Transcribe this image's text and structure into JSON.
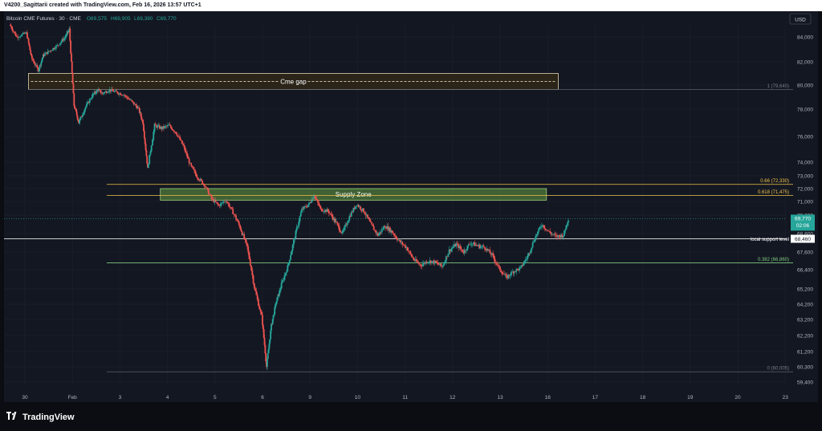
{
  "header": {
    "attribution": "V4200_Sagittarii created with TradingView.com, Feb 16, 2026 13:57 UTC+1"
  },
  "symbol_bar": {
    "symbol": "Bitcoin CME Futures · 30 · CME",
    "open": "O69,575",
    "high": "H69,905",
    "low": "L69,380",
    "close": "C69,770"
  },
  "currency": "USD",
  "footer": {
    "brand": "TradingView"
  },
  "colors": {
    "up": "#26a69a",
    "down": "#ef5350",
    "grid": "#1e222d",
    "fib": "#f0c24a",
    "zone": "#4f7b3a",
    "fib_382": "#7fc97f"
  },
  "chart_data": {
    "type": "candlestick",
    "title": "Bitcoin CME Futures · 30 · CME",
    "y_axis": {
      "label": "USD",
      "ylim": [
        58800,
        85500
      ],
      "ticks": [
        "84,000",
        "82,000",
        "80,000",
        "78,000",
        "76,000",
        "74,000",
        "73,000",
        "72,000",
        "71,000",
        "70,000",
        "68,800",
        "67,600",
        "66,400",
        "65,200",
        "64,200",
        "63,200",
        "62,200",
        "61,200",
        "60,300",
        "59,400"
      ]
    },
    "x_axis": {
      "range_days": [
        0,
        23.5
      ],
      "ticks": [
        {
          "label": "30",
          "day": 0
        },
        {
          "label": "Feb",
          "day": 2
        },
        {
          "label": "3",
          "day": 4
        },
        {
          "label": "4",
          "day": 6
        },
        {
          "label": "5",
          "day": 8
        },
        {
          "label": "6",
          "day": 10
        },
        {
          "label": "9",
          "day": 12
        },
        {
          "label": "10",
          "day": 14
        },
        {
          "label": "11",
          "day": 16
        },
        {
          "label": "12",
          "day": 18
        },
        {
          "label": "13",
          "day": 20
        },
        {
          "label": "16",
          "day": 22
        },
        {
          "label": "17",
          "day": 24
        },
        {
          "label": "18",
          "day": 26
        },
        {
          "label": "19",
          "day": 28
        },
        {
          "label": "20",
          "day": 30
        },
        {
          "label": "23",
          "day": 32
        }
      ]
    },
    "price_path": [
      [
        -0.6,
        85000
      ],
      [
        -0.3,
        84000
      ],
      [
        0.1,
        84300
      ],
      [
        0.3,
        82400
      ],
      [
        0.6,
        81300
      ],
      [
        0.8,
        82500
      ],
      [
        1.1,
        82900
      ],
      [
        1.4,
        83300
      ],
      [
        1.7,
        83900
      ],
      [
        1.9,
        84600
      ],
      [
        2.1,
        78300
      ],
      [
        2.3,
        77000
      ],
      [
        2.6,
        78200
      ],
      [
        2.9,
        79200
      ],
      [
        3.1,
        79600
      ],
      [
        3.3,
        79300
      ],
      [
        3.6,
        79600
      ],
      [
        3.9,
        79400
      ],
      [
        4.2,
        79200
      ],
      [
        4.5,
        78700
      ],
      [
        4.8,
        78100
      ],
      [
        5.0,
        77000
      ],
      [
        5.2,
        73500
      ],
      [
        5.5,
        76800
      ],
      [
        5.8,
        76600
      ],
      [
        6.1,
        76800
      ],
      [
        6.4,
        76300
      ],
      [
        6.7,
        75300
      ],
      [
        7.0,
        73800
      ],
      [
        7.3,
        72900
      ],
      [
        7.6,
        72300
      ],
      [
        7.9,
        71200
      ],
      [
        8.2,
        70700
      ],
      [
        8.5,
        71100
      ],
      [
        8.8,
        70200
      ],
      [
        9.1,
        69200
      ],
      [
        9.4,
        67900
      ],
      [
        9.7,
        65300
      ],
      [
        10.0,
        63400
      ],
      [
        10.2,
        60300
      ],
      [
        10.4,
        62800
      ],
      [
        10.6,
        64300
      ],
      [
        10.8,
        65300
      ],
      [
        11.1,
        66600
      ],
      [
        11.4,
        68600
      ],
      [
        11.7,
        70400
      ],
      [
        12.0,
        70800
      ],
      [
        12.2,
        71500
      ],
      [
        12.5,
        70400
      ],
      [
        12.8,
        70300
      ],
      [
        13.1,
        69600
      ],
      [
        13.4,
        68800
      ],
      [
        13.7,
        69900
      ],
      [
        14.0,
        70800
      ],
      [
        14.3,
        70300
      ],
      [
        14.6,
        69400
      ],
      [
        14.9,
        68700
      ],
      [
        15.2,
        69300
      ],
      [
        15.5,
        68900
      ],
      [
        15.8,
        68300
      ],
      [
        16.1,
        67900
      ],
      [
        16.4,
        67100
      ],
      [
        16.7,
        66700
      ],
      [
        17.0,
        67000
      ],
      [
        17.3,
        66900
      ],
      [
        17.6,
        66600
      ],
      [
        17.9,
        67700
      ],
      [
        18.2,
        68100
      ],
      [
        18.5,
        67600
      ],
      [
        18.8,
        68200
      ],
      [
        19.1,
        68000
      ],
      [
        19.4,
        67900
      ],
      [
        19.7,
        67400
      ],
      [
        20.0,
        66500
      ],
      [
        20.3,
        65900
      ],
      [
        20.6,
        66300
      ],
      [
        20.9,
        66500
      ],
      [
        21.2,
        67300
      ],
      [
        21.5,
        68500
      ],
      [
        21.8,
        69400
      ],
      [
        22.1,
        68900
      ],
      [
        22.4,
        68600
      ],
      [
        22.7,
        68700
      ],
      [
        22.9,
        69770
      ]
    ],
    "levels": [
      {
        "label": "1 (79,640)",
        "price": 79640,
        "style": "fib-gray"
      },
      {
        "label": "0.66 (72,330)",
        "price": 72330,
        "style": "fib-gold"
      },
      {
        "label": "0.618 (71,475)",
        "price": 71475,
        "style": "fib-gold"
      },
      {
        "label": "0.382 (66,860)",
        "price": 66860,
        "style": "fib-green"
      },
      {
        "label": "0 (60,005)",
        "price": 60005,
        "style": "fib-gray"
      },
      {
        "label": "local support level",
        "price": 68460,
        "style": "support"
      }
    ],
    "zones": [
      {
        "label": "Cme gap",
        "price_top": 81000,
        "price_bottom": 79640,
        "day_start": 0.15,
        "day_end": 22.45,
        "style": "gap"
      },
      {
        "label": "Supply Zone",
        "price_top": 72000,
        "price_bottom": 71100,
        "day_start": 5.7,
        "day_end": 21.95,
        "style": "supply"
      }
    ],
    "price_tags": [
      {
        "lines": [
          "69,770",
          "02:06"
        ],
        "price": 69770,
        "style": "current"
      },
      {
        "lines": [
          "68,460"
        ],
        "price": 68460,
        "style": "support"
      }
    ]
  }
}
